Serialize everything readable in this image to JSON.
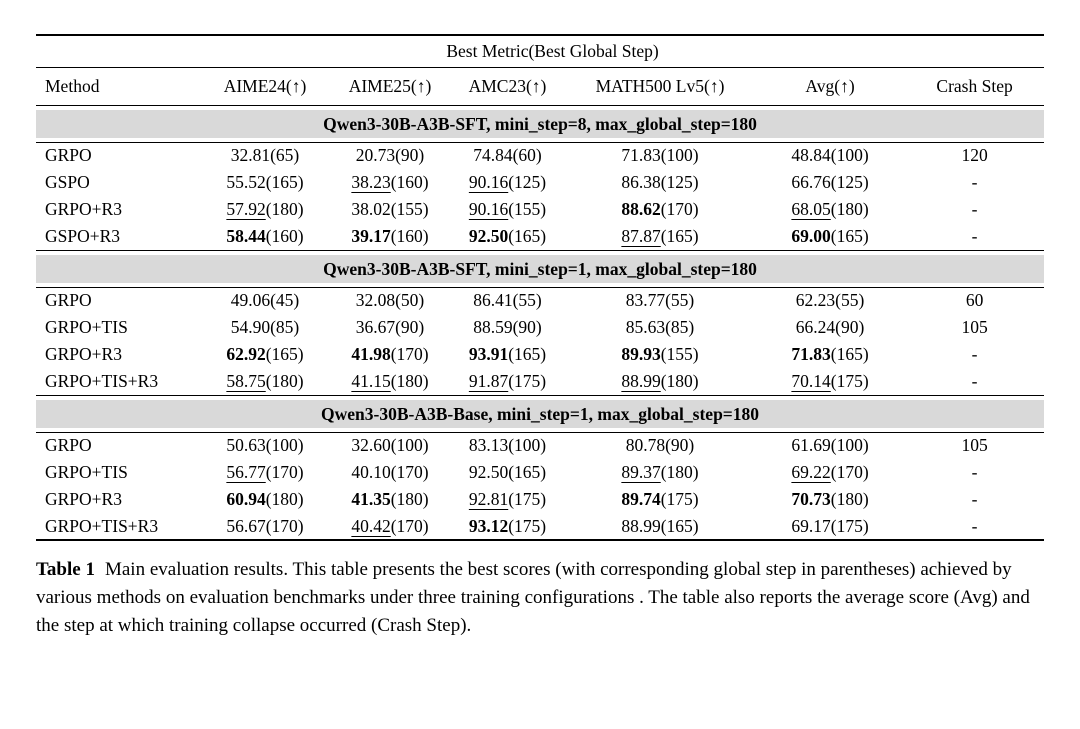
{
  "table": {
    "spanner": "Best Metric(Best Global Step)",
    "columns": [
      "Method",
      "AIME24(↑)",
      "AIME25(↑)",
      "AMC23(↑)",
      "MATH500 Lv5(↑)",
      "Avg(↑)",
      "Crash Step"
    ],
    "band_color": "#d9d9d9",
    "sections": [
      {
        "header": "Qwen3-30B-A3B-SFT, mini_step=8, max_global_step=180",
        "rows": [
          {
            "method": "GRPO",
            "cells": [
              {
                "score": "32.81",
                "step": "(65)",
                "style": "plain"
              },
              {
                "score": "20.73",
                "step": "(90)",
                "style": "plain"
              },
              {
                "score": "74.84",
                "step": "(60)",
                "style": "plain"
              },
              {
                "score": "71.83",
                "step": "(100)",
                "style": "plain"
              },
              {
                "score": "48.84",
                "step": "(100)",
                "style": "plain"
              }
            ],
            "crash": "120"
          },
          {
            "method": "GSPO",
            "cells": [
              {
                "score": "55.52",
                "step": "(165)",
                "style": "plain"
              },
              {
                "score": "38.23",
                "step": "(160)",
                "style": "underline"
              },
              {
                "score": "90.16",
                "step": "(125)",
                "style": "underline"
              },
              {
                "score": "86.38",
                "step": "(125)",
                "style": "plain"
              },
              {
                "score": "66.76",
                "step": "(125)",
                "style": "plain"
              }
            ],
            "crash": "-"
          },
          {
            "method": "GRPO+R3",
            "cells": [
              {
                "score": "57.92",
                "step": "(180)",
                "style": "underline"
              },
              {
                "score": "38.02",
                "step": "(155)",
                "style": "plain"
              },
              {
                "score": "90.16",
                "step": "(155)",
                "style": "underline"
              },
              {
                "score": "88.62",
                "step": "(170)",
                "style": "bold"
              },
              {
                "score": "68.05",
                "step": "(180)",
                "style": "underline"
              }
            ],
            "crash": "-"
          },
          {
            "method": "GSPO+R3",
            "cells": [
              {
                "score": "58.44",
                "step": "(160)",
                "style": "bold"
              },
              {
                "score": "39.17",
                "step": "(160)",
                "style": "bold"
              },
              {
                "score": "92.50",
                "step": "(165)",
                "style": "bold"
              },
              {
                "score": "87.87",
                "step": "(165)",
                "style": "underline"
              },
              {
                "score": "69.00",
                "step": "(165)",
                "style": "bold"
              }
            ],
            "crash": "-"
          }
        ]
      },
      {
        "header": "Qwen3-30B-A3B-SFT, mini_step=1, max_global_step=180",
        "rows": [
          {
            "method": "GRPO",
            "cells": [
              {
                "score": "49.06",
                "step": "(45)",
                "style": "plain"
              },
              {
                "score": "32.08",
                "step": "(50)",
                "style": "plain"
              },
              {
                "score": "86.41",
                "step": "(55)",
                "style": "plain"
              },
              {
                "score": "83.77",
                "step": "(55)",
                "style": "plain"
              },
              {
                "score": "62.23",
                "step": "(55)",
                "style": "plain"
              }
            ],
            "crash": "60"
          },
          {
            "method": "GRPO+TIS",
            "cells": [
              {
                "score": "54.90",
                "step": "(85)",
                "style": "plain"
              },
              {
                "score": "36.67",
                "step": "(90)",
                "style": "plain"
              },
              {
                "score": "88.59",
                "step": "(90)",
                "style": "plain"
              },
              {
                "score": "85.63",
                "step": "(85)",
                "style": "plain"
              },
              {
                "score": "66.24",
                "step": "(90)",
                "style": "plain"
              }
            ],
            "crash": "105"
          },
          {
            "method": "GRPO+R3",
            "cells": [
              {
                "score": "62.92",
                "step": "(165)",
                "style": "bold"
              },
              {
                "score": "41.98",
                "step": "(170)",
                "style": "bold"
              },
              {
                "score": "93.91",
                "step": "(165)",
                "style": "bold"
              },
              {
                "score": "89.93",
                "step": "(155)",
                "style": "bold"
              },
              {
                "score": "71.83",
                "step": "(165)",
                "style": "bold"
              }
            ],
            "crash": "-"
          },
          {
            "method": "GRPO+TIS+R3",
            "cells": [
              {
                "score": "58.75",
                "step": "(180)",
                "style": "underline"
              },
              {
                "score": "41.15",
                "step": "(180)",
                "style": "underline"
              },
              {
                "score": "91.87",
                "step": "(175)",
                "style": "underline"
              },
              {
                "score": "88.99",
                "step": "(180)",
                "style": "underline"
              },
              {
                "score": "70.14",
                "step": "(175)",
                "style": "underline"
              }
            ],
            "crash": "-"
          }
        ]
      },
      {
        "header": "Qwen3-30B-A3B-Base, mini_step=1, max_global_step=180",
        "rows": [
          {
            "method": "GRPO",
            "cells": [
              {
                "score": "50.63",
                "step": "(100)",
                "style": "plain"
              },
              {
                "score": "32.60",
                "step": "(100)",
                "style": "plain"
              },
              {
                "score": "83.13",
                "step": "(100)",
                "style": "plain"
              },
              {
                "score": "80.78",
                "step": "(90)",
                "style": "plain"
              },
              {
                "score": "61.69",
                "step": "(100)",
                "style": "plain"
              }
            ],
            "crash": "105"
          },
          {
            "method": "GRPO+TIS",
            "cells": [
              {
                "score": "56.77",
                "step": "(170)",
                "style": "underline"
              },
              {
                "score": "40.10",
                "step": "(170)",
                "style": "plain"
              },
              {
                "score": "92.50",
                "step": "(165)",
                "style": "plain"
              },
              {
                "score": "89.37",
                "step": "(180)",
                "style": "underline"
              },
              {
                "score": "69.22",
                "step": "(170)",
                "style": "underline"
              }
            ],
            "crash": "-"
          },
          {
            "method": "GRPO+R3",
            "cells": [
              {
                "score": "60.94",
                "step": "(180)",
                "style": "bold"
              },
              {
                "score": "41.35",
                "step": "(180)",
                "style": "bold"
              },
              {
                "score": "92.81",
                "step": "(175)",
                "style": "underline"
              },
              {
                "score": "89.74",
                "step": "(175)",
                "style": "bold"
              },
              {
                "score": "70.73",
                "step": "(180)",
                "style": "bold"
              }
            ],
            "crash": "-"
          },
          {
            "method": "GRPO+TIS+R3",
            "cells": [
              {
                "score": "56.67",
                "step": "(170)",
                "style": "plain"
              },
              {
                "score": "40.42",
                "step": "(170)",
                "style": "underline"
              },
              {
                "score": "93.12",
                "step": "(175)",
                "style": "bold"
              },
              {
                "score": "88.99",
                "step": "(165)",
                "style": "plain"
              },
              {
                "score": "69.17",
                "step": "(175)",
                "style": "plain"
              }
            ],
            "crash": "-"
          }
        ]
      }
    ]
  },
  "caption": {
    "label": "Table 1",
    "text": "Main evaluation results. This table presents the best scores (with corresponding global step in parentheses) achieved by various methods on evaluation benchmarks under three training configurations . The table also reports the average score (Avg) and the step at which training collapse occurred (Crash Step)."
  }
}
